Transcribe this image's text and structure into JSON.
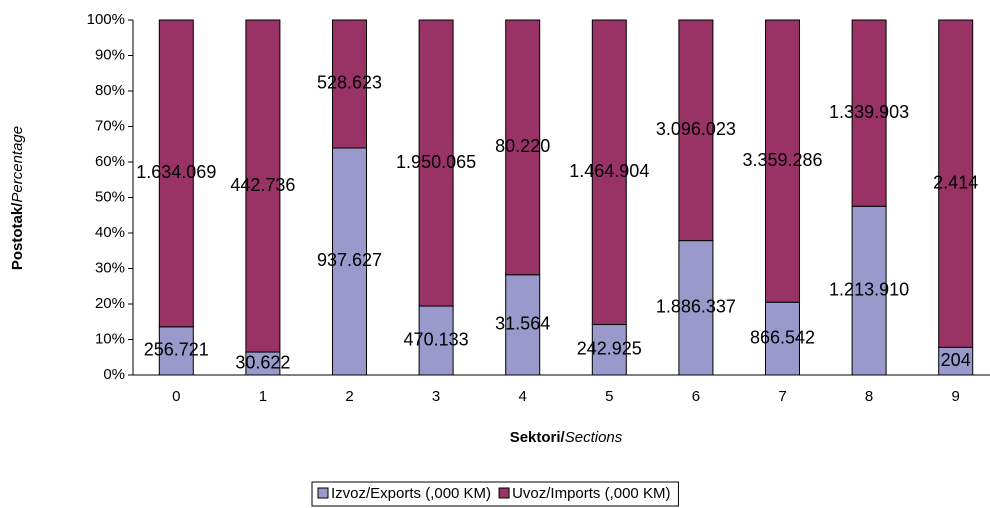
{
  "chart_data": {
    "type": "stacked-percent-bar",
    "categories": [
      "0",
      "1",
      "2",
      "3",
      "4",
      "5",
      "6",
      "7",
      "8",
      "9"
    ],
    "series": [
      {
        "name": "Izvoz/Exports (,000 KM)",
        "color": "#9999cc",
        "values": [
          256721,
          30622,
          937627,
          470133,
          31564,
          242925,
          1886337,
          866542,
          1213910,
          204
        ],
        "value_labels": [
          "256.721",
          "30.622",
          "937.627",
          "470.133",
          "31.564",
          "242.925",
          "1.886.337",
          "866.542",
          "1.213.910",
          "204"
        ]
      },
      {
        "name": "Uvoz/Imports (,000 KM)",
        "color": "#993366",
        "values": [
          1634069,
          442736,
          528623,
          1950065,
          80220,
          1464904,
          3096023,
          3359286,
          1339903,
          2414
        ],
        "value_labels": [
          "1.634.069",
          "442.736",
          "528.623",
          "1.950.065",
          "80.220",
          "1.464.904",
          "3.096.023",
          "3.359.286",
          "1.339.903",
          "2.414"
        ]
      }
    ],
    "xlabel": [
      "Sektori/",
      "Sections"
    ],
    "ylabel": [
      "Postotak/",
      "Percentage"
    ],
    "ylim": [
      0,
      100
    ],
    "yticks": [
      {
        "value": 0,
        "label": "0%"
      },
      {
        "value": 10,
        "label": "10%"
      },
      {
        "value": 20,
        "label": "20%"
      },
      {
        "value": 30,
        "label": "30%"
      },
      {
        "value": 40,
        "label": "40%"
      },
      {
        "value": 50,
        "label": "50%"
      },
      {
        "value": 60,
        "label": "60%"
      },
      {
        "value": 70,
        "label": "70%"
      },
      {
        "value": 80,
        "label": "80%"
      },
      {
        "value": 90,
        "label": "90%"
      },
      {
        "value": 100,
        "label": "100%"
      }
    ],
    "legend": "bottom"
  }
}
